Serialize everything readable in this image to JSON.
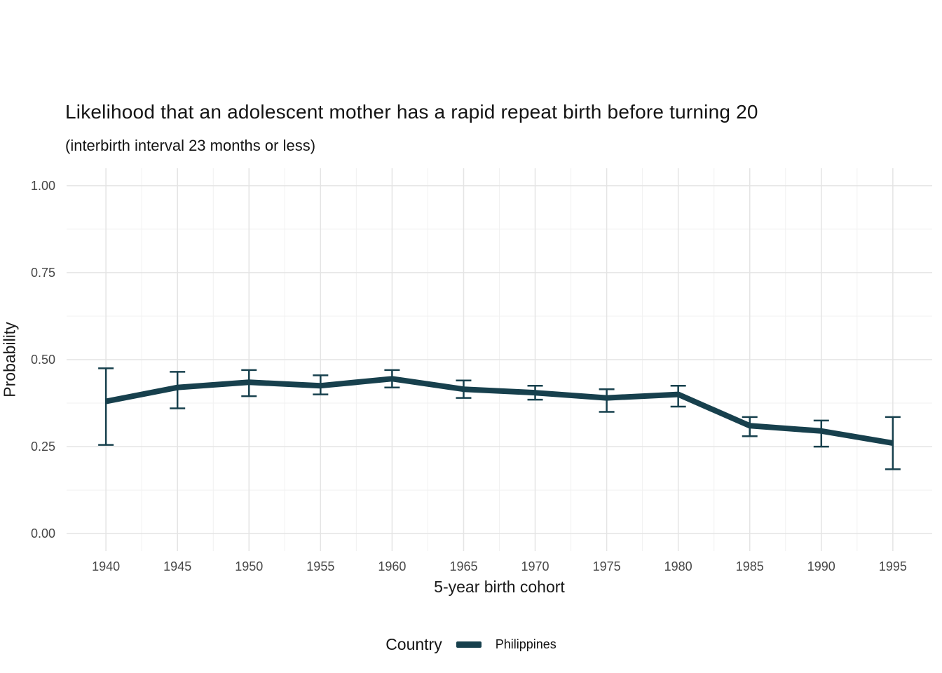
{
  "chart_data": {
    "type": "line",
    "title": "Likelihood that an adolescent mother has a rapid repeat birth before turning 20",
    "subtitle": "(interbirth interval 23 months or less)",
    "xlabel": "5-year birth cohort",
    "ylabel": "Probability",
    "x": [
      1940,
      1945,
      1950,
      1955,
      1960,
      1965,
      1970,
      1975,
      1980,
      1985,
      1990,
      1995
    ],
    "x_tick_labels": [
      "1940",
      "1945",
      "1950",
      "1955",
      "1960",
      "1965",
      "1970",
      "1975",
      "1980",
      "1985",
      "1990",
      "1995"
    ],
    "y_ticks": [
      0,
      0.25,
      0.5,
      0.75,
      1
    ],
    "y_tick_labels": [
      "0.00",
      "0.25",
      "0.50",
      "0.75",
      "1.00"
    ],
    "ylim": [
      0,
      1
    ],
    "grid": true,
    "error_bars": true,
    "legend": {
      "title": "Country",
      "position": "bottom"
    },
    "series": [
      {
        "name": "Philippines",
        "color": "#17404d",
        "values": [
          0.38,
          0.42,
          0.435,
          0.425,
          0.445,
          0.415,
          0.405,
          0.39,
          0.4,
          0.31,
          0.295,
          0.26
        ],
        "ci_low": [
          0.255,
          0.36,
          0.395,
          0.4,
          0.42,
          0.39,
          0.385,
          0.35,
          0.365,
          0.28,
          0.25,
          0.185
        ],
        "ci_high": [
          0.475,
          0.465,
          0.47,
          0.455,
          0.47,
          0.44,
          0.425,
          0.415,
          0.425,
          0.335,
          0.325,
          0.335
        ]
      }
    ]
  }
}
